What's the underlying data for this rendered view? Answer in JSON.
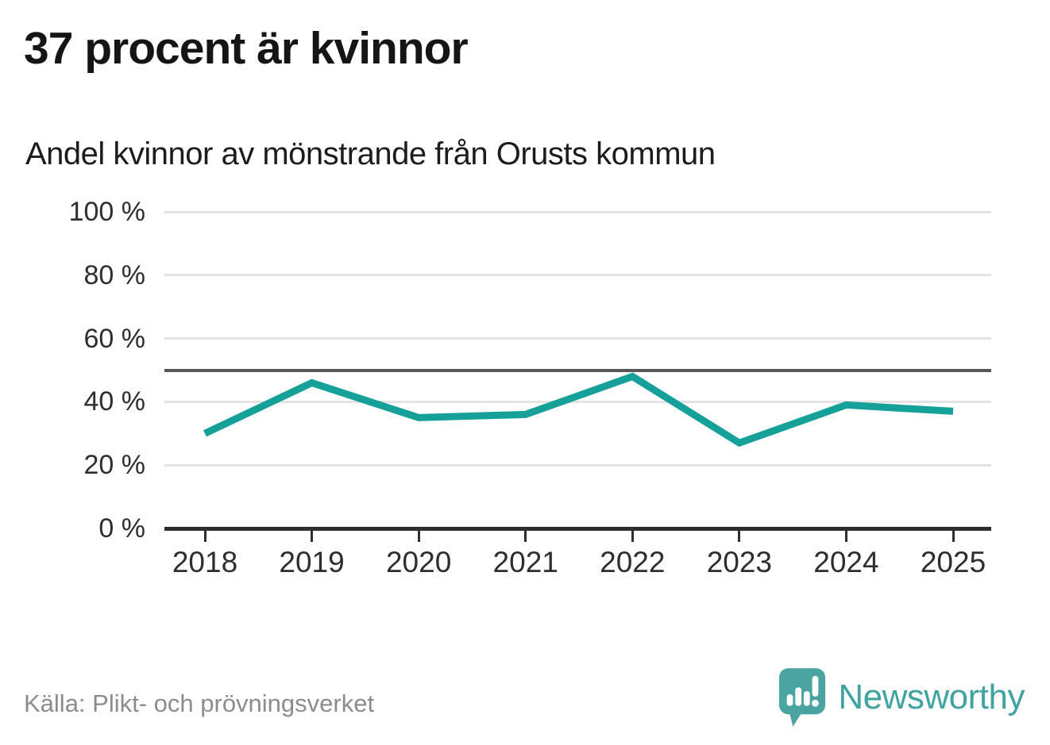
{
  "header": {
    "title": "37 procent är kvinnor"
  },
  "chart_data": {
    "type": "line",
    "title": "37 procent är kvinnor",
    "subtitle": "Andel kvinnor av mönstrande från Orusts kommun",
    "series": [
      {
        "name": "Andel kvinnor av mönstrande",
        "values": [
          30,
          46,
          35,
          36,
          48,
          27,
          39,
          37
        ]
      }
    ],
    "categories": [
      "2018",
      "2019",
      "2020",
      "2021",
      "2022",
      "2023",
      "2024",
      "2025"
    ],
    "xlabel": "",
    "ylabel": "",
    "ylim": [
      0,
      100
    ],
    "yticks": [
      0,
      20,
      40,
      60,
      80,
      100
    ],
    "ytick_suffix": " %",
    "reference_line": {
      "value": 50
    },
    "grid": "horizontal",
    "legend_position": "none",
    "line_color": "#16a09a"
  },
  "footer": {
    "source": "Källa: Plikt- och prövningsverket",
    "brand_name": "Newsworthy"
  },
  "colors": {
    "line": "#16a09a",
    "reference": "#575757",
    "axis": "#2e2e2e",
    "grid": "#e3e3e3",
    "brand": "#41a3a0",
    "title": "#151515",
    "source": "#8c8c8c"
  }
}
